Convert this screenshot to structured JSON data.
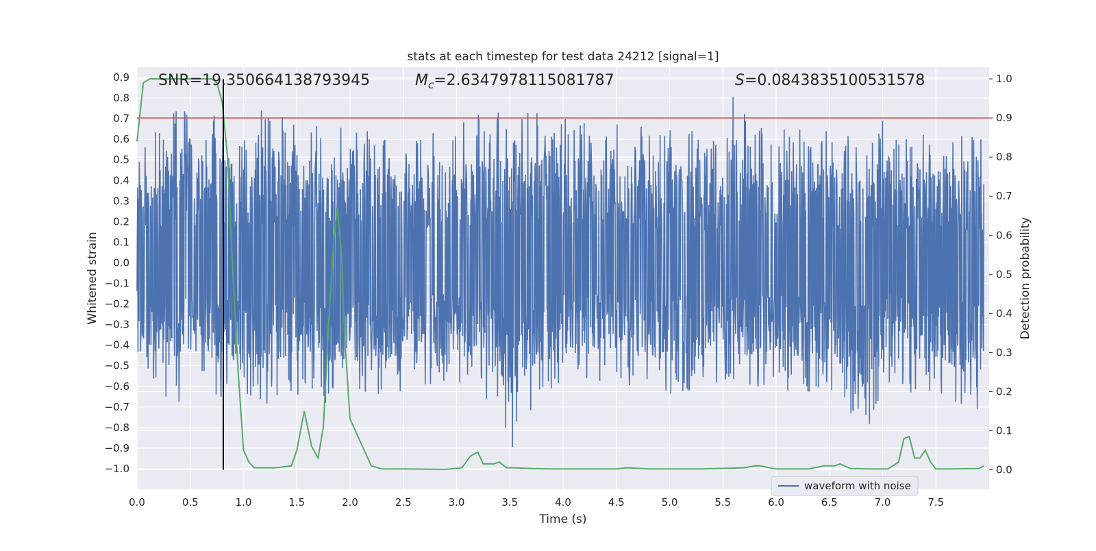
{
  "chart_data": {
    "type": "line",
    "title": "stats at each timestep for test data 24212 [signal=1]",
    "xlabel": "Time (s)",
    "ylabel_left": "Whitened strain",
    "ylabel_right": "Detection probability",
    "xlim": [
      0.0,
      8.0
    ],
    "ylim_left": [
      -1.1,
      0.95
    ],
    "ylim_right": [
      -0.05,
      1.03
    ],
    "x_ticks": [
      "0.0",
      "0.5",
      "1.0",
      "1.5",
      "2.0",
      "2.5",
      "3.0",
      "3.5",
      "4.0",
      "4.5",
      "5.0",
      "5.5",
      "6.0",
      "6.5",
      "7.0",
      "7.5"
    ],
    "y_left_ticks": [
      "0.9",
      "0.8",
      "0.7",
      "0.6",
      "0.5",
      "0.4",
      "0.3",
      "0.2",
      "0.1",
      "0.0",
      "−0.1",
      "−0.2",
      "−0.3",
      "−0.4",
      "−0.5",
      "−0.6",
      "−0.7",
      "−0.8",
      "−0.9",
      "−1.0"
    ],
    "y_right_ticks": [
      "1.0",
      "0.9",
      "0.8",
      "0.7",
      "0.6",
      "0.5",
      "0.4",
      "0.3",
      "0.2",
      "0.1",
      "0.0"
    ],
    "grid": true,
    "legend_placement": "lower-right",
    "annotations": {
      "snr": "SNR=19.350664138793945",
      "mc": "=2.6347978115081787",
      "s": "=0.0843835100531578"
    },
    "series": [
      {
        "name": "waveform with noise",
        "axis": "left",
        "color": "#4c72b0",
        "envelope_x": [
          0.0,
          0.3,
          0.6,
          0.8,
          1.0,
          1.25,
          1.5,
          1.75,
          2.0,
          2.5,
          3.0,
          3.2,
          3.45,
          3.5,
          3.75,
          4.0,
          4.5,
          5.0,
          5.5,
          5.6,
          5.75,
          6.0,
          6.5,
          6.85,
          7.0,
          7.5,
          7.95
        ],
        "envelope_top": [
          0.5,
          0.77,
          0.7,
          0.75,
          0.62,
          0.8,
          0.66,
          0.7,
          0.66,
          0.6,
          0.68,
          0.72,
          0.76,
          0.7,
          0.75,
          0.7,
          0.68,
          0.66,
          0.62,
          0.84,
          0.67,
          0.65,
          0.66,
          0.6,
          0.7,
          0.62,
          0.62
        ],
        "envelope_bottom": [
          -0.45,
          -0.72,
          -0.6,
          -0.66,
          -0.62,
          -0.75,
          -0.65,
          -0.7,
          -0.68,
          -0.62,
          -0.6,
          -0.62,
          -0.82,
          -1.0,
          -0.65,
          -0.6,
          -0.58,
          -0.65,
          -0.6,
          -0.6,
          -0.62,
          -0.6,
          -0.7,
          -0.83,
          -0.62,
          -0.65,
          -0.75
        ]
      },
      {
        "name": "",
        "axis": "right",
        "color": "#55a868",
        "x": [
          0.0,
          0.06,
          0.12,
          0.7,
          0.75,
          0.8,
          0.85,
          0.9,
          0.95,
          1.0,
          1.05,
          1.1,
          1.2,
          1.3,
          1.45,
          1.5,
          1.57,
          1.64,
          1.7,
          1.75,
          1.8,
          1.85,
          1.88,
          1.92,
          1.95,
          2.0,
          2.1,
          2.2,
          2.3,
          2.5,
          2.9,
          3.05,
          3.13,
          3.2,
          3.25,
          3.35,
          3.4,
          3.47,
          3.55,
          3.7,
          3.9,
          4.5,
          4.6,
          4.8,
          5.3,
          5.7,
          5.8,
          5.85,
          6.0,
          6.3,
          6.45,
          6.55,
          6.6,
          6.7,
          6.9,
          7.05,
          7.15,
          7.2,
          7.25,
          7.3,
          7.35,
          7.4,
          7.45,
          7.5,
          7.6,
          7.9,
          7.95
        ],
        "y": [
          0.84,
          0.99,
          1.0,
          1.0,
          0.99,
          0.94,
          0.8,
          0.5,
          0.25,
          0.05,
          0.02,
          0.005,
          0.005,
          0.005,
          0.01,
          0.05,
          0.15,
          0.06,
          0.03,
          0.11,
          0.38,
          0.6,
          0.67,
          0.55,
          0.34,
          0.13,
          0.07,
          0.01,
          0.002,
          0.002,
          0.001,
          0.005,
          0.035,
          0.045,
          0.015,
          0.015,
          0.02,
          0.005,
          0.005,
          0.003,
          0.002,
          0.002,
          0.005,
          0.002,
          0.002,
          0.005,
          0.01,
          0.01,
          0.002,
          0.002,
          0.01,
          0.01,
          0.015,
          0.003,
          0.002,
          0.002,
          0.02,
          0.08,
          0.085,
          0.03,
          0.03,
          0.05,
          0.02,
          0.002,
          0.002,
          0.003,
          0.01
        ]
      }
    ],
    "threshold": {
      "axis": "right",
      "value": 0.9,
      "color": "#c44e52"
    },
    "marker_x": 0.81,
    "marker_color": "#000000"
  }
}
